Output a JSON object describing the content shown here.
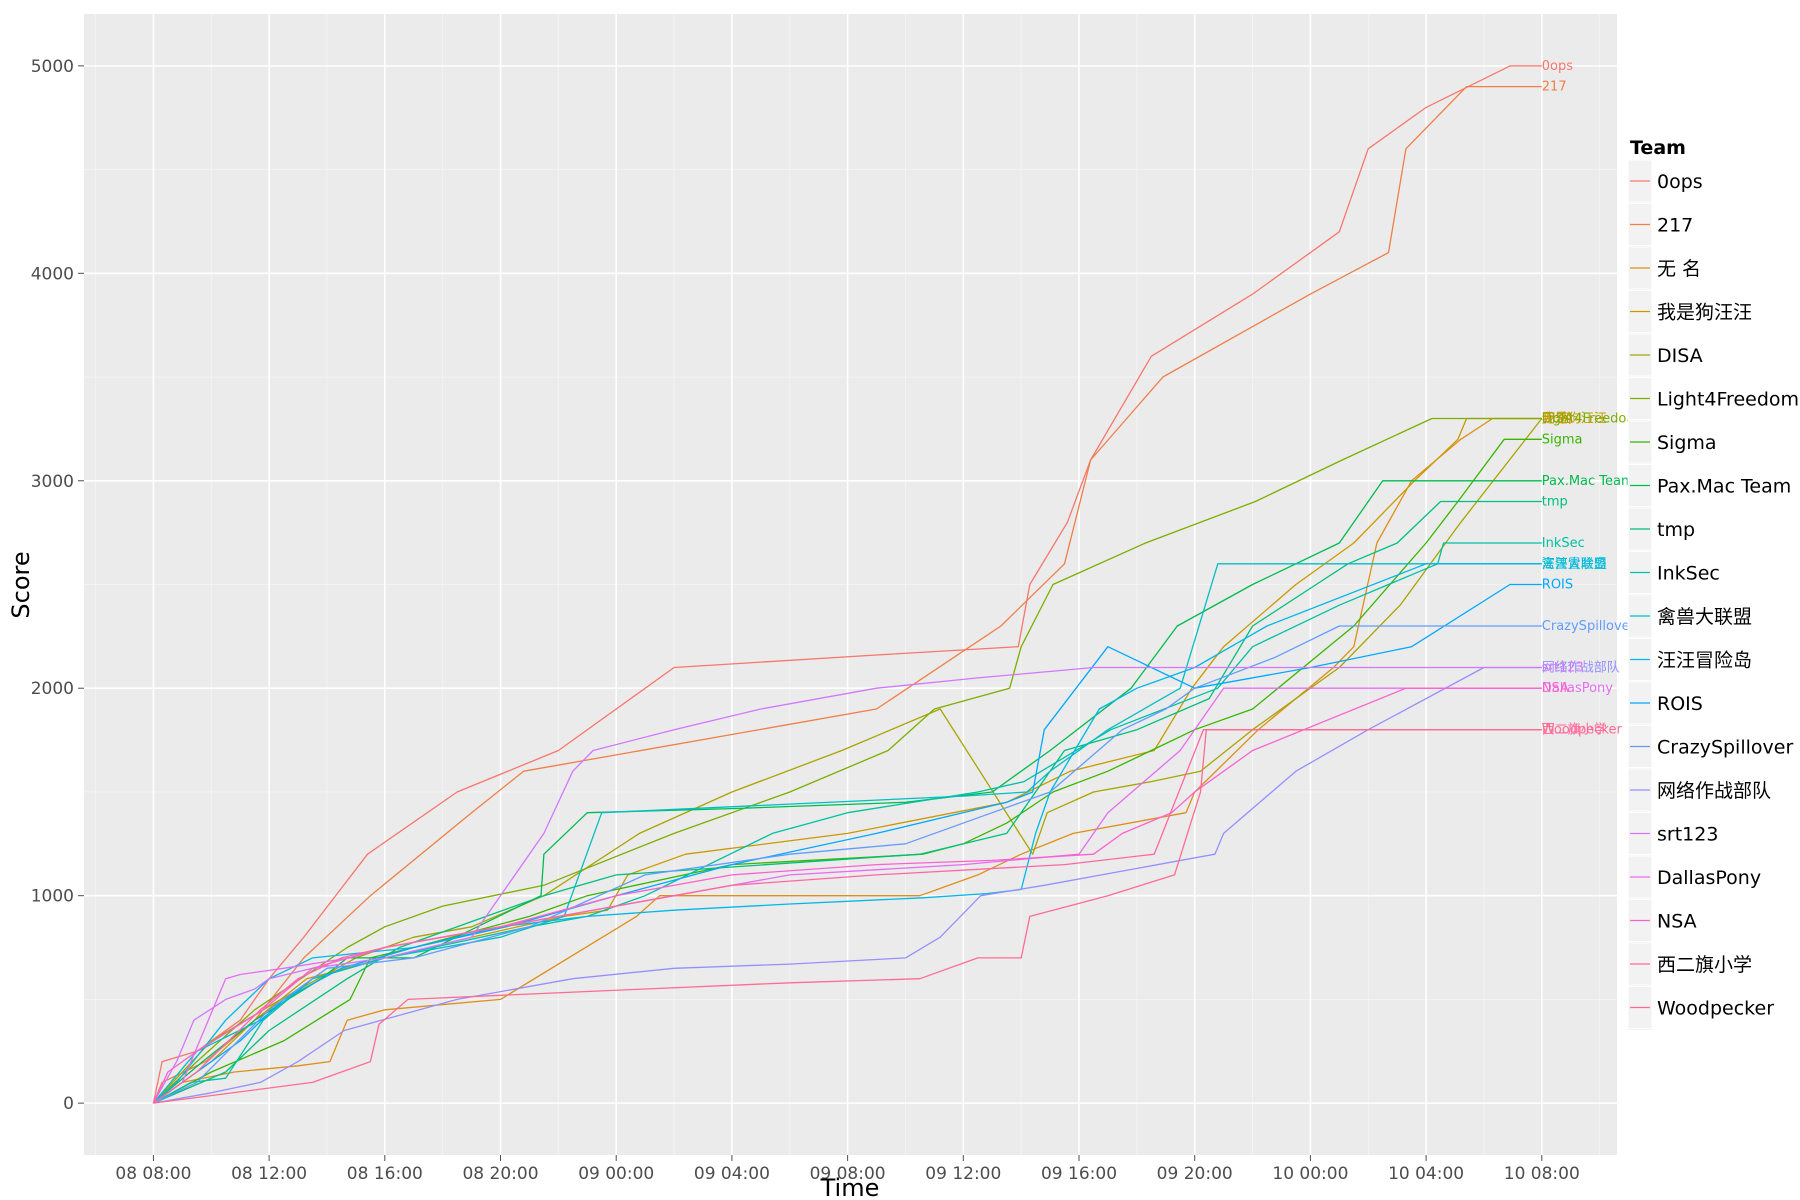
{
  "chart_data": {
    "type": "line",
    "title": "",
    "xlabel": "Time",
    "ylabel": "Score",
    "x_unit": "hours since 08 08:00",
    "x_ticks": [
      {
        "x": 0,
        "label": "08 08:00"
      },
      {
        "x": 4,
        "label": "08 12:00"
      },
      {
        "x": 8,
        "label": "08 16:00"
      },
      {
        "x": 12,
        "label": "08 20:00"
      },
      {
        "x": 16,
        "label": "09 00:00"
      },
      {
        "x": 20,
        "label": "09 04:00"
      },
      {
        "x": 24,
        "label": "09 08:00"
      },
      {
        "x": 28,
        "label": "09 12:00"
      },
      {
        "x": 32,
        "label": "09 16:00"
      },
      {
        "x": 36,
        "label": "09 20:00"
      },
      {
        "x": 40,
        "label": "10 00:00"
      },
      {
        "x": 44,
        "label": "10 04:00"
      },
      {
        "x": 48,
        "label": "10 08:00"
      }
    ],
    "y_ticks": [
      0,
      1000,
      2000,
      3000,
      4000,
      5000
    ],
    "xlim": [
      -2.4,
      50.6
    ],
    "ylim": [
      -250,
      5250
    ],
    "grid": true,
    "legend": {
      "title": "Team",
      "position": "right"
    },
    "series": [
      {
        "name": "0ops",
        "color": "#F8766D",
        "x": [
          0,
          0.3,
          1.5,
          3.0,
          4.0,
          5.2,
          7.4,
          10.5,
          14.0,
          18.0,
          25.0,
          29.9,
          30.3,
          31.6,
          32.4,
          34.5,
          38.0,
          41.0,
          42.0,
          44.0,
          46.9,
          48.0
        ],
        "y": [
          0,
          200,
          250,
          400,
          600,
          800,
          1200,
          1500,
          1700,
          2100,
          2160,
          2200,
          2500,
          2800,
          3100,
          3600,
          3900,
          4200,
          4600,
          4800,
          5000,
          5000
        ]
      },
      {
        "name": "217",
        "color": "#EF7F49",
        "x": [
          0,
          0.3,
          1.8,
          3.5,
          5.2,
          7.5,
          11.0,
          12.8,
          25.0,
          29.3,
          31.5,
          32.4,
          34.9,
          40.0,
          42.7,
          43.3,
          45.4,
          48.0
        ],
        "y": [
          0,
          100,
          200,
          400,
          700,
          1000,
          1400,
          1600,
          1900,
          2300,
          2600,
          3100,
          3500,
          3900,
          4100,
          4600,
          4900,
          4900
        ]
      },
      {
        "name": "无 名",
        "color": "#DF8E18",
        "x": [
          0,
          1.0,
          2.8,
          5.0,
          6.1,
          6.7,
          8.0,
          12.0,
          16.7,
          17.5,
          26.5,
          28.5,
          30.0,
          31.8,
          35.7,
          36.0,
          38.2,
          40.8,
          41.5,
          42.3,
          43.5,
          45.2,
          46.3,
          48.0
        ],
        "y": [
          0,
          100,
          150,
          180,
          200,
          400,
          450,
          500,
          900,
          1000,
          1000,
          1100,
          1200,
          1300,
          1400,
          1500,
          1800,
          2100,
          2200,
          2700,
          3000,
          3200,
          3300,
          3300
        ]
      },
      {
        "name": "我是狗汪汪",
        "color": "#C99A00",
        "x": [
          0,
          2.0,
          3.5,
          5.3,
          8.0,
          11.0,
          14.2,
          15.7,
          16.4,
          18.4,
          24.0,
          29.5,
          31.7,
          34.6,
          35.9,
          37.0,
          39.5,
          41.5,
          43.6,
          45.1,
          45.4,
          46.7,
          48.0
        ],
        "y": [
          0,
          200,
          400,
          600,
          700,
          800,
          900,
          930,
          1100,
          1200,
          1300,
          1450,
          1600,
          1700,
          2000,
          2200,
          2500,
          2700,
          3000,
          3200,
          3300,
          3300,
          3300
        ]
      },
      {
        "name": "DISA",
        "color": "#A8A400",
        "x": [
          0,
          2.0,
          4.4,
          7.0,
          9.0,
          11.0,
          13.5,
          16.8,
          20.0,
          23.8,
          27.2,
          30.4,
          30.9,
          32.5,
          34.5,
          36.2,
          38.0,
          41.0,
          43.1,
          45.2,
          48.0
        ],
        "y": [
          0,
          300,
          500,
          700,
          800,
          850,
          1000,
          1300,
          1500,
          1700,
          1900,
          1200,
          1400,
          1500,
          1550,
          1600,
          1800,
          2100,
          2400,
          2800,
          3300
        ]
      },
      {
        "name": "Light4Freedom",
        "color": "#7CAE00",
        "x": [
          0,
          1.5,
          3.5,
          6.7,
          8.0,
          10.0,
          13.5,
          18.0,
          22.0,
          25.4,
          27.0,
          29.6,
          30.0,
          31.1,
          34.3,
          38.1,
          41.1,
          44.2,
          45.1,
          48.0
        ],
        "y": [
          0,
          200,
          450,
          750,
          850,
          950,
          1050,
          1300,
          1500,
          1700,
          1900,
          2000,
          2200,
          2500,
          2700,
          2900,
          3100,
          3300,
          3300,
          3300
        ]
      },
      {
        "name": "Sigma",
        "color": "#39B600",
        "x": [
          0,
          2.0,
          4.5,
          6.8,
          7.5,
          9.0,
          13.0,
          15.0,
          20.0,
          26.6,
          28.0,
          29.5,
          31.1,
          33.0,
          34.5,
          36.0,
          38.0,
          41.5,
          44.0,
          45.1,
          46.7,
          48.0
        ],
        "y": [
          0,
          150,
          300,
          500,
          700,
          750,
          900,
          1000,
          1150,
          1200,
          1250,
          1350,
          1500,
          1600,
          1700,
          1800,
          1900,
          2300,
          2700,
          2900,
          3200,
          3200
        ]
      },
      {
        "name": "Pax.Mac Team",
        "color": "#00BB4E",
        "x": [
          0,
          1.7,
          3.5,
          5.8,
          6.7,
          9.0,
          13.4,
          13.5,
          15.0,
          20.0,
          26.0,
          29.0,
          31.0,
          33.8,
          35.4,
          38.0,
          41.0,
          42.5,
          45.0,
          48.0
        ],
        "y": [
          0,
          200,
          400,
          600,
          700,
          700,
          1000,
          1200,
          1400,
          1420,
          1450,
          1500,
          1700,
          2000,
          2300,
          2500,
          2700,
          3000,
          3000,
          3000
        ]
      },
      {
        "name": "tmp",
        "color": "#00BF7D",
        "x": [
          0,
          2.5,
          4.0,
          6.7,
          8.5,
          13.5,
          16.0,
          26.5,
          29.5,
          31.5,
          34.0,
          36.5,
          38.0,
          40.2,
          41.3,
          43.0,
          44.5,
          48.0
        ],
        "y": [
          0,
          150,
          350,
          600,
          750,
          1000,
          1100,
          1200,
          1300,
          1700,
          1800,
          1950,
          2300,
          2500,
          2600,
          2700,
          2900,
          2900
        ]
      },
      {
        "name": "InkSec",
        "color": "#00C1A3",
        "x": [
          0,
          1.3,
          2.5,
          3.8,
          5.5,
          8.0,
          13.0,
          15.0,
          17.0,
          21.4,
          24.0,
          28.5,
          30.1,
          33.1,
          36.8,
          38.0,
          41.0,
          44.4,
          44.6,
          48.0
        ],
        "y": [
          0,
          100,
          120,
          400,
          600,
          700,
          850,
          900,
          1000,
          1300,
          1400,
          1500,
          1550,
          1800,
          2000,
          2200,
          2400,
          2600,
          2700,
          2700
        ]
      },
      {
        "name": "禽兽大联盟",
        "color": "#00BFC4",
        "x": [
          0,
          1.5,
          3.7,
          5.5,
          8.0,
          12.0,
          14.2,
          15.5,
          28.0,
          30.2,
          31.0,
          33.0,
          35.5,
          36.8,
          48.0
        ],
        "y": [
          0,
          250,
          400,
          600,
          700,
          800,
          900,
          1400,
          1480,
          1500,
          1600,
          1800,
          2000,
          2600,
          2600
        ]
      },
      {
        "name": "汪汪冒险岛",
        "color": "#00B7E8",
        "x": [
          0,
          0.8,
          2.5,
          4.0,
          5.5,
          9.0,
          12.0,
          15.0,
          18.0,
          22.0,
          26.6,
          28.8,
          30.0,
          30.5,
          31.0,
          32.7,
          34.0,
          36.0,
          38.5,
          44.0,
          48.0
        ],
        "y": [
          0,
          100,
          400,
          600,
          700,
          750,
          850,
          900,
          930,
          960,
          990,
          1010,
          1030,
          1300,
          1500,
          1900,
          2000,
          2100,
          2300,
          2600,
          2600
        ]
      },
      {
        "name": "ROIS",
        "color": "#00A9FF",
        "x": [
          0,
          1.5,
          3.0,
          4.5,
          6.5,
          9.0,
          12.2,
          16.0,
          20.0,
          25.0,
          29.5,
          30.4,
          30.8,
          33.0,
          36.0,
          40.0,
          43.5,
          46.9,
          48.0
        ],
        "y": [
          0,
          150,
          300,
          500,
          650,
          750,
          850,
          1000,
          1150,
          1300,
          1450,
          1500,
          1800,
          2200,
          2000,
          2100,
          2200,
          2500,
          2500
        ]
      },
      {
        "name": "CrazySpillover",
        "color": "#619CFF",
        "x": [
          0,
          1.5,
          4.0,
          6.0,
          9.0,
          13.0,
          17.0,
          22.0,
          26.0,
          29.0,
          31.0,
          33.5,
          35.0,
          36.0,
          38.8,
          41.0,
          48.0
        ],
        "y": [
          0,
          100,
          450,
          650,
          700,
          850,
          1100,
          1200,
          1250,
          1400,
          1500,
          1800,
          1900,
          2000,
          2150,
          2300,
          2300
        ]
      },
      {
        "name": "网络作战部队",
        "color": "#9590FF",
        "x": [
          0,
          2.0,
          3.7,
          5.0,
          6.6,
          10.5,
          14.5,
          18.0,
          22.0,
          26.0,
          27.2,
          28.6,
          30.8,
          36.7,
          37.0,
          39.5,
          42.0,
          46.0,
          48.0
        ],
        "y": [
          0,
          50,
          100,
          200,
          350,
          500,
          600,
          650,
          670,
          700,
          800,
          1000,
          1050,
          1200,
          1300,
          1600,
          1800,
          2100,
          2100
        ]
      },
      {
        "name": "srt123",
        "color": "#D277FF",
        "x": [
          0,
          0.8,
          1.4,
          2.5,
          3.5,
          4.0,
          5.5,
          8.0,
          11.0,
          13.5,
          14.5,
          15.2,
          18.0,
          21.0,
          25.0,
          28.5,
          32.5,
          34.0,
          35.0,
          48.0
        ],
        "y": [
          0,
          200,
          400,
          500,
          550,
          600,
          650,
          700,
          800,
          1300,
          1600,
          1700,
          1800,
          1900,
          2000,
          2050,
          2100,
          2100,
          2100,
          2100
        ]
      },
      {
        "name": "DallasPony",
        "color": "#E76BF3",
        "x": [
          0,
          1.0,
          2.5,
          3.0,
          4.5,
          6.8,
          8.0,
          12.0,
          14.0,
          18.0,
          22.0,
          28.0,
          32.0,
          33.0,
          35.5,
          37.0,
          48.0
        ],
        "y": [
          0,
          100,
          600,
          620,
          650,
          700,
          750,
          850,
          900,
          1000,
          1100,
          1150,
          1200,
          1400,
          1700,
          2000,
          2000
        ]
      },
      {
        "name": "NSA",
        "color": "#FD61D1",
        "x": [
          0,
          0.5,
          1.5,
          3.8,
          5.5,
          8.0,
          12.0,
          16.0,
          20.0,
          25.0,
          29.0,
          32.5,
          33.5,
          35.2,
          36.0,
          38.0,
          43.3,
          46.0,
          48.0
        ],
        "y": [
          0,
          150,
          250,
          450,
          650,
          750,
          850,
          1000,
          1100,
          1150,
          1170,
          1200,
          1300,
          1400,
          1500,
          1700,
          2000,
          2000,
          2000
        ]
      },
      {
        "name": "西二旗小学",
        "color": "#FF67A4",
        "x": [
          0,
          1.5,
          3.7,
          5.0,
          6.5,
          8.0,
          12.0,
          16.0,
          20.0,
          25.0,
          31.5,
          34.6,
          36.3,
          36.5,
          40.0,
          43.0,
          46.0,
          48.0
        ],
        "y": [
          0,
          150,
          450,
          600,
          700,
          750,
          850,
          950,
          1050,
          1100,
          1150,
          1200,
          1800,
          1800,
          1800,
          1800,
          1800,
          1800
        ]
      },
      {
        "name": "Woodpecker",
        "color": "#FF6C91",
        "x": [
          0,
          5.5,
          7.5,
          7.8,
          8.8,
          12.0,
          17.0,
          22.0,
          26.5,
          28.5,
          30.0,
          30.3,
          33.0,
          35.3,
          36.2,
          36.4,
          38.0,
          45.7,
          48.0
        ],
        "y": [
          0,
          100,
          200,
          380,
          500,
          520,
          550,
          580,
          600,
          700,
          700,
          900,
          1000,
          1100,
          1500,
          1800,
          1800,
          1800,
          1800
        ]
      }
    ]
  }
}
